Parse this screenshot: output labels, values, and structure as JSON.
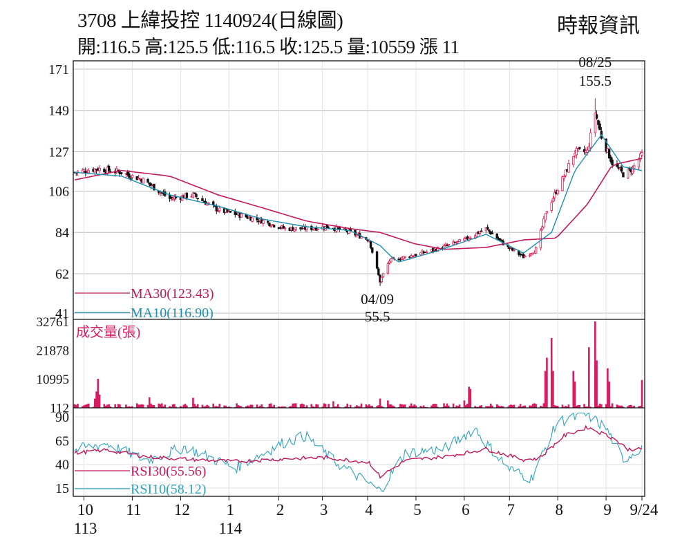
{
  "header": {
    "title": "3708  上緯投控 1140924(日線圖)",
    "source": "時報資訊",
    "ohlc": "開:116.5 高:125.5 低:116.5 收:125.5 量:10559 漲 11"
  },
  "colors": {
    "up": "#e01a4f",
    "down": "#111111",
    "ma30": "#c2185b",
    "ma10": "#1d8fb0",
    "volume": "#d81b60",
    "rsi30": "#c2185b",
    "rsi10": "#2fa3bd",
    "grid": "#bdbdbd"
  },
  "chart_data": [
    {
      "type": "candlestick",
      "title": "3708 上緯投控 1140924(日線圖)",
      "y_ticks": [
        171,
        149,
        127,
        106,
        84,
        62,
        41
      ],
      "ylim": [
        41,
        171
      ],
      "grid": true,
      "annotations": [
        {
          "date_label": "08/25",
          "value_label": "155.5",
          "at": "2025-08-25",
          "value": 155.5,
          "kind": "high"
        },
        {
          "date_label": "04/09",
          "value_label": "55.5",
          "at": "2025-04-09",
          "value": 55.5,
          "kind": "low"
        }
      ],
      "legend": [
        {
          "key": "ma30",
          "label": "MA30(123.43)"
        },
        {
          "key": "ma10",
          "label": "MA10(116.90)"
        }
      ],
      "series": {
        "close_approx": [
          [
            "2024-09-25",
            116
          ],
          [
            "2024-10-10",
            118
          ],
          [
            "2024-10-25",
            116
          ],
          [
            "2024-11-08",
            112
          ],
          [
            "2024-11-25",
            102
          ],
          [
            "2024-12-10",
            104
          ],
          [
            "2024-12-26",
            96
          ],
          [
            "2025-01-10",
            93
          ],
          [
            "2025-01-24",
            90
          ],
          [
            "2025-02-07",
            86
          ],
          [
            "2025-02-21",
            86
          ],
          [
            "2025-03-07",
            87
          ],
          [
            "2025-03-21",
            84
          ],
          [
            "2025-04-02",
            80
          ],
          [
            "2025-04-09",
            58
          ],
          [
            "2025-04-15",
            69
          ],
          [
            "2025-05-01",
            72
          ],
          [
            "2025-05-15",
            75
          ],
          [
            "2025-06-02",
            80
          ],
          [
            "2025-06-16",
            86
          ],
          [
            "2025-06-30",
            76
          ],
          [
            "2025-07-10",
            71
          ],
          [
            "2025-07-18",
            75
          ],
          [
            "2025-07-25",
            96
          ],
          [
            "2025-08-05",
            114
          ],
          [
            "2025-08-12",
            127
          ],
          [
            "2025-08-20",
            127
          ],
          [
            "2025-08-25",
            148
          ],
          [
            "2025-08-29",
            135
          ],
          [
            "2025-09-05",
            121
          ],
          [
            "2025-09-12",
            115
          ],
          [
            "2025-09-18",
            118
          ],
          [
            "2025-09-24",
            125.5
          ]
        ],
        "ma30_approx": [
          [
            "2024-09-25",
            112
          ],
          [
            "2024-10-25",
            117
          ],
          [
            "2024-11-25",
            114
          ],
          [
            "2024-12-26",
            104
          ],
          [
            "2025-01-24",
            97
          ],
          [
            "2025-02-21",
            90
          ],
          [
            "2025-03-21",
            86
          ],
          [
            "2025-04-09",
            84
          ],
          [
            "2025-05-01",
            78
          ],
          [
            "2025-05-20",
            75
          ],
          [
            "2025-06-16",
            76
          ],
          [
            "2025-07-10",
            80
          ],
          [
            "2025-07-31",
            81
          ],
          [
            "2025-08-20",
            99
          ],
          [
            "2025-09-05",
            120
          ],
          [
            "2025-09-24",
            123.43
          ]
        ],
        "ma10_approx": [
          [
            "2024-09-25",
            116
          ],
          [
            "2024-10-25",
            114
          ],
          [
            "2024-11-25",
            104
          ],
          [
            "2024-12-26",
            98
          ],
          [
            "2025-01-24",
            91
          ],
          [
            "2025-02-21",
            87
          ],
          [
            "2025-03-21",
            85
          ],
          [
            "2025-04-09",
            77
          ],
          [
            "2025-04-20",
            68
          ],
          [
            "2025-05-15",
            74
          ],
          [
            "2025-06-16",
            83
          ],
          [
            "2025-07-10",
            73
          ],
          [
            "2025-07-28",
            84
          ],
          [
            "2025-08-12",
            117
          ],
          [
            "2025-08-29",
            136
          ],
          [
            "2025-09-12",
            119
          ],
          [
            "2025-09-24",
            116.9
          ]
        ]
      }
    },
    {
      "type": "bar",
      "title": "成交量(張)",
      "y_ticks": [
        32761,
        21878,
        10995,
        112
      ],
      "ylim": [
        0,
        32761
      ],
      "bars_approx": [
        [
          "2024-10-08",
          3500
        ],
        [
          "2024-10-09",
          6200
        ],
        [
          "2024-10-10",
          11000
        ],
        [
          "2024-10-11",
          5000
        ],
        [
          "2024-11-12",
          4000
        ],
        [
          "2024-12-10",
          3800
        ],
        [
          "2025-03-10",
          2500
        ],
        [
          "2025-04-09",
          3500
        ],
        [
          "2025-04-14",
          2800
        ],
        [
          "2025-06-02",
          2800
        ],
        [
          "2025-06-05",
          8000
        ],
        [
          "2025-06-06",
          7200
        ],
        [
          "2025-07-24",
          14000
        ],
        [
          "2025-07-25",
          19000
        ],
        [
          "2025-07-28",
          26500
        ],
        [
          "2025-07-29",
          14000
        ],
        [
          "2025-08-11",
          14000
        ],
        [
          "2025-08-12",
          10000
        ],
        [
          "2025-08-21",
          23000
        ],
        [
          "2025-08-25",
          32761
        ],
        [
          "2025-08-26",
          18000
        ],
        [
          "2025-09-02",
          15000
        ],
        [
          "2025-09-03",
          10000
        ],
        [
          "2025-09-24",
          10559
        ]
      ]
    },
    {
      "type": "line",
      "y_ticks": [
        90,
        65,
        40,
        15
      ],
      "ylim": [
        5,
        95
      ],
      "legend": [
        {
          "key": "rsi30",
          "label": "RSI30(55.56)"
        },
        {
          "key": "rsi10",
          "label": "RSI10(58.12)"
        }
      ],
      "series": {
        "rsi30_approx": [
          [
            "2024-09-25",
            52
          ],
          [
            "2024-10-15",
            55
          ],
          [
            "2024-11-10",
            48
          ],
          [
            "2024-12-10",
            45
          ],
          [
            "2025-01-06",
            43
          ],
          [
            "2025-02-10",
            46
          ],
          [
            "2025-03-05",
            47
          ],
          [
            "2025-04-02",
            42
          ],
          [
            "2025-04-09",
            27
          ],
          [
            "2025-04-25",
            44
          ],
          [
            "2025-05-20",
            48
          ],
          [
            "2025-06-16",
            56
          ],
          [
            "2025-07-10",
            45
          ],
          [
            "2025-07-20",
            46
          ],
          [
            "2025-08-05",
            70
          ],
          [
            "2025-08-20",
            79
          ],
          [
            "2025-09-05",
            68
          ],
          [
            "2025-09-15",
            56
          ],
          [
            "2025-09-24",
            55.56
          ]
        ],
        "rsi10_approx": [
          [
            "2024-09-25",
            55
          ],
          [
            "2024-10-15",
            62
          ],
          [
            "2024-11-10",
            44
          ],
          [
            "2024-12-05",
            58
          ],
          [
            "2025-01-06",
            36
          ],
          [
            "2025-02-05",
            62
          ],
          [
            "2025-02-20",
            70
          ],
          [
            "2025-03-10",
            44
          ],
          [
            "2025-04-09",
            12
          ],
          [
            "2025-04-25",
            52
          ],
          [
            "2025-05-20",
            56
          ],
          [
            "2025-06-09",
            78
          ],
          [
            "2025-06-16",
            62
          ],
          [
            "2025-07-01",
            35
          ],
          [
            "2025-07-15",
            25
          ],
          [
            "2025-08-01",
            85
          ],
          [
            "2025-08-20",
            92
          ],
          [
            "2025-09-01",
            78
          ],
          [
            "2025-09-12",
            45
          ],
          [
            "2025-09-24",
            58.12
          ]
        ]
      }
    }
  ],
  "x_axis": {
    "months": [
      {
        "label": "10",
        "year_label": "113",
        "at": "2024-10-01"
      },
      {
        "label": "11",
        "year_label": "",
        "at": "2024-11-01"
      },
      {
        "label": "12",
        "year_label": "",
        "at": "2024-12-02"
      },
      {
        "label": "1",
        "year_label": "114",
        "at": "2025-01-02"
      },
      {
        "label": "2",
        "year_label": "",
        "at": "2025-02-03"
      },
      {
        "label": "3",
        "year_label": "",
        "at": "2025-03-03"
      },
      {
        "label": "4",
        "year_label": "",
        "at": "2025-04-01"
      },
      {
        "label": "5",
        "year_label": "",
        "at": "2025-05-02"
      },
      {
        "label": "6",
        "year_label": "",
        "at": "2025-06-02"
      },
      {
        "label": "7",
        "year_label": "",
        "at": "2025-07-01"
      },
      {
        "label": "8",
        "year_label": "",
        "at": "2025-08-01"
      },
      {
        "label": "9",
        "year_label": "",
        "at": "2025-09-01"
      },
      {
        "label": "9/24",
        "year_label": "",
        "at": "2025-09-24"
      }
    ],
    "start": "2024-09-25",
    "end": "2025-09-24"
  }
}
